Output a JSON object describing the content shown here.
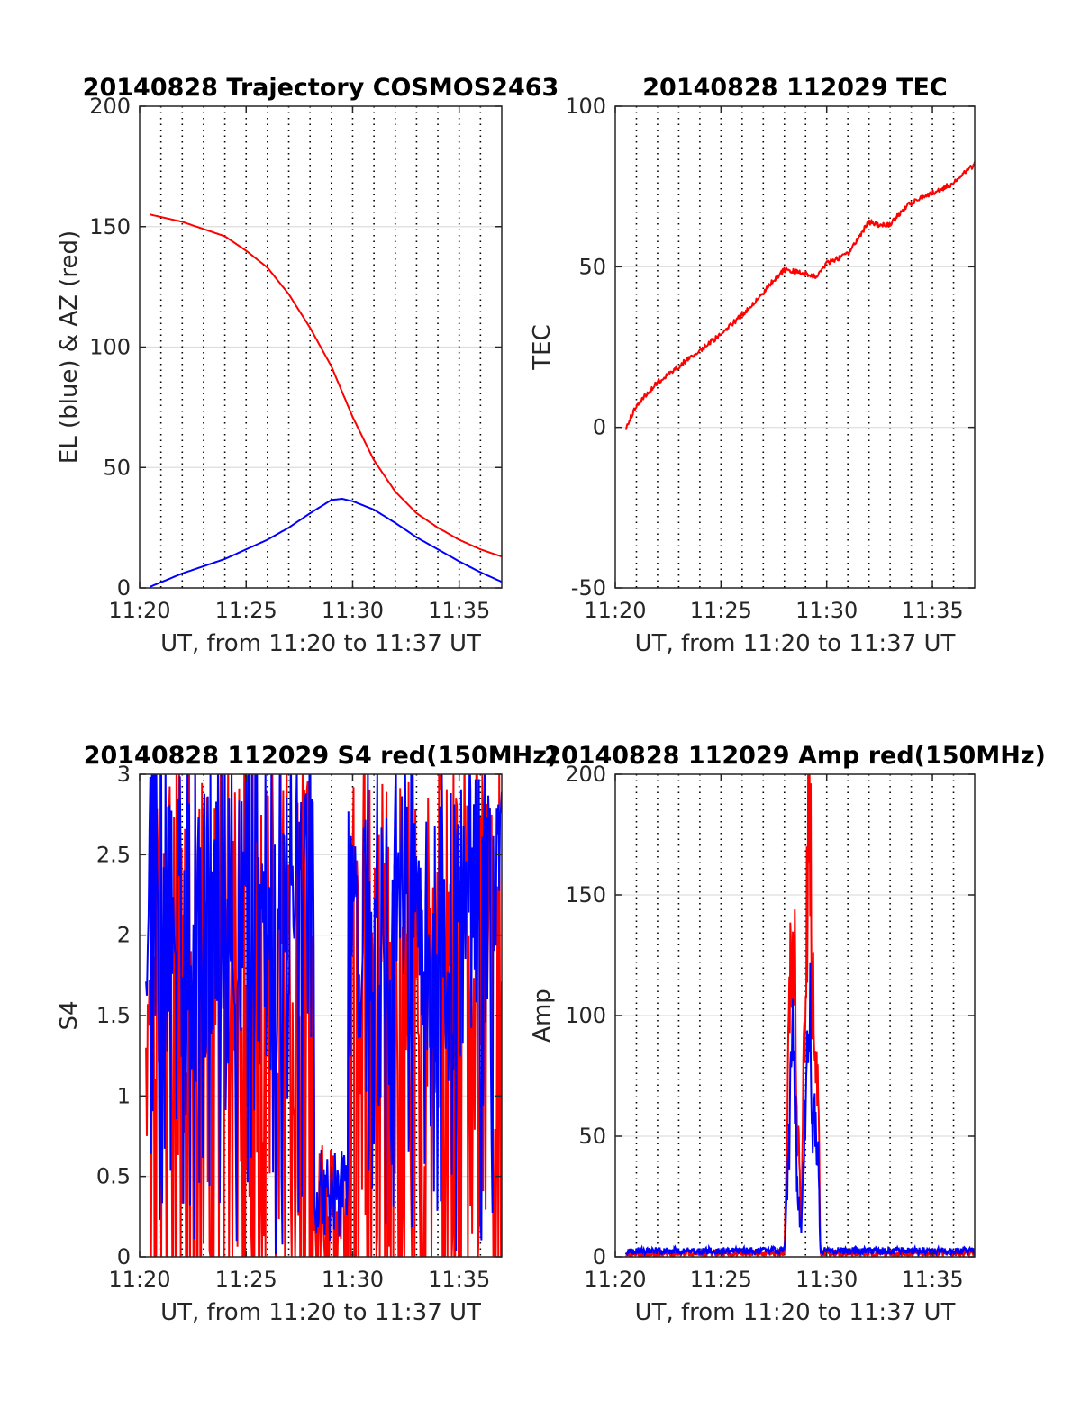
{
  "colors": {
    "el": "#0000ff",
    "az": "#ff0000",
    "tec": "#ff0000",
    "red_channel": "#ff0000",
    "blue_channel": "#0000ff",
    "grid": "#dddddd",
    "axis": "#262626"
  },
  "chart_data": [
    {
      "type": "line",
      "title": "20140828 Trajectory COSMOS2463",
      "xlabel": "UT, from 11:20 to 11:37 UT",
      "ylabel": "EL (blue) & AZ (red)",
      "xlim": [
        "11:20",
        "11:37"
      ],
      "ylim": [
        0,
        200
      ],
      "x_ticks": [
        "11:20",
        "11:25",
        "11:30",
        "11:35"
      ],
      "y_ticks": [
        "0",
        "50",
        "100",
        "150",
        "200"
      ],
      "grid": "vertical dotted every minute, horizontal light",
      "series": [
        {
          "color": "#0000ff",
          "x": [
            "11:20.5",
            "11:22",
            "11:24",
            "11:26",
            "11:27",
            "11:28",
            "11:29",
            "11:29.5",
            "11:30",
            "11:31",
            "11:32",
            "11:33",
            "11:34",
            "11:35",
            "11:36",
            "11:37"
          ],
          "y": [
            0.5,
            6,
            12,
            20,
            25,
            31,
            36.5,
            37,
            36,
            32.5,
            27,
            21,
            16,
            11,
            6.5,
            2.5
          ]
        },
        {
          "color": "#ff0000",
          "x": [
            "11:20.5",
            "11:22",
            "11:24",
            "11:25",
            "11:26",
            "11:27",
            "11:28",
            "11:29",
            "11:30",
            "11:31",
            "11:32",
            "11:33",
            "11:34",
            "11:35",
            "11:36",
            "11:37"
          ],
          "y": [
            155,
            152,
            146,
            140,
            133,
            122,
            108,
            92,
            71,
            53,
            40,
            31,
            25,
            20,
            16,
            13
          ]
        }
      ]
    },
    {
      "type": "line",
      "title": "20140828 112029 TEC",
      "xlabel": "UT, from 11:20 to 11:37 UT",
      "ylabel": "TEC",
      "xlim": [
        "11:20",
        "11:37"
      ],
      "ylim": [
        -50,
        100
      ],
      "x_ticks": [
        "11:20",
        "11:25",
        "11:30",
        "11:35"
      ],
      "y_ticks": [
        "-50",
        "0",
        "50",
        "100"
      ],
      "grid": "vertical dotted every minute, horizontal light",
      "series": [
        {
          "color": "#ff0000",
          "x": [
            "11:20.5",
            "11:21",
            "11:22",
            "11:23",
            "11:24",
            "11:25",
            "11:26",
            "11:27",
            "11:27.5",
            "11:28",
            "11:29",
            "11:29.5",
            "11:30",
            "11:31",
            "11:31.5",
            "11:32",
            "11:32.5",
            "11:33",
            "11:33.5",
            "11:34",
            "11:35",
            "11:36",
            "11:37"
          ],
          "y": [
            0,
            7,
            14,
            19,
            24,
            29,
            35,
            42,
            46,
            49,
            48,
            47,
            51,
            54,
            59,
            64,
            63,
            63,
            67,
            70,
            73,
            76,
            82
          ]
        }
      ]
    },
    {
      "type": "line",
      "title": "20140828 112029 S4 red(150MHz)",
      "xlabel": "UT, from 11:20 to 11:37 UT",
      "ylabel": "S4",
      "xlim": [
        "11:20",
        "11:37"
      ],
      "ylim": [
        0,
        3
      ],
      "x_ticks": [
        "11:20",
        "11:25",
        "11:30",
        "11:35"
      ],
      "y_ticks": [
        "0",
        "0.5",
        "1",
        "1.5",
        "2",
        "2.5",
        "3"
      ],
      "grid": "vertical dotted every minute, horizontal light",
      "series": [
        {
          "color": "#ff0000",
          "description_values": "rapid oscillation between 0 and 3 from 11:20.3 to 11:37, lower values near 11:28.5-11:30",
          "x": [
            "11:28.2",
            "11:28.5",
            "11:29",
            "11:29.5",
            "11:30"
          ],
          "y": [
            0.9,
            0.2,
            0.3,
            0.15,
            0.8
          ]
        },
        {
          "color": "#0000ff",
          "x": [
            "11:28.3",
            "11:28.6",
            "11:29",
            "11:29.4",
            "11:29.7"
          ],
          "y": [
            0.5,
            0.2,
            0.3,
            0.15,
            0.6
          ]
        }
      ]
    },
    {
      "type": "line",
      "title": "20140828 112029 Amp red(150MHz)",
      "xlabel": "UT, from 11:20 to 11:37 UT",
      "ylabel": "Amp",
      "xlim": [
        "11:20",
        "11:37"
      ],
      "ylim": [
        0,
        200
      ],
      "x_ticks": [
        "11:20",
        "11:25",
        "11:30",
        "11:35"
      ],
      "y_ticks": [
        "0",
        "50",
        "100",
        "150",
        "200"
      ],
      "grid": "vertical dotted every minute, horizontal light",
      "series": [
        {
          "color": "#ff0000",
          "x": [
            "11:20.5",
            "11:28",
            "11:28.2",
            "11:28.4",
            "11:28.6",
            "11:28.8",
            "11:29.0",
            "11:29.2",
            "11:29.3",
            "11:29.6",
            "11:29.7",
            "11:37"
          ],
          "y": [
            0,
            0,
            105,
            160,
            60,
            20,
            120,
            192,
            110,
            85,
            0,
            0
          ]
        },
        {
          "color": "#0000ff",
          "x": [
            "11:20.5",
            "11:28",
            "11:28.2",
            "11:28.4",
            "11:28.6",
            "11:28.8",
            "11:29.0",
            "11:29.2",
            "11:29.3",
            "11:29.6",
            "11:29.7",
            "11:37"
          ],
          "y": [
            1,
            1,
            40,
            100,
            30,
            10,
            70,
            110,
            60,
            45,
            1,
            1
          ]
        }
      ]
    }
  ]
}
